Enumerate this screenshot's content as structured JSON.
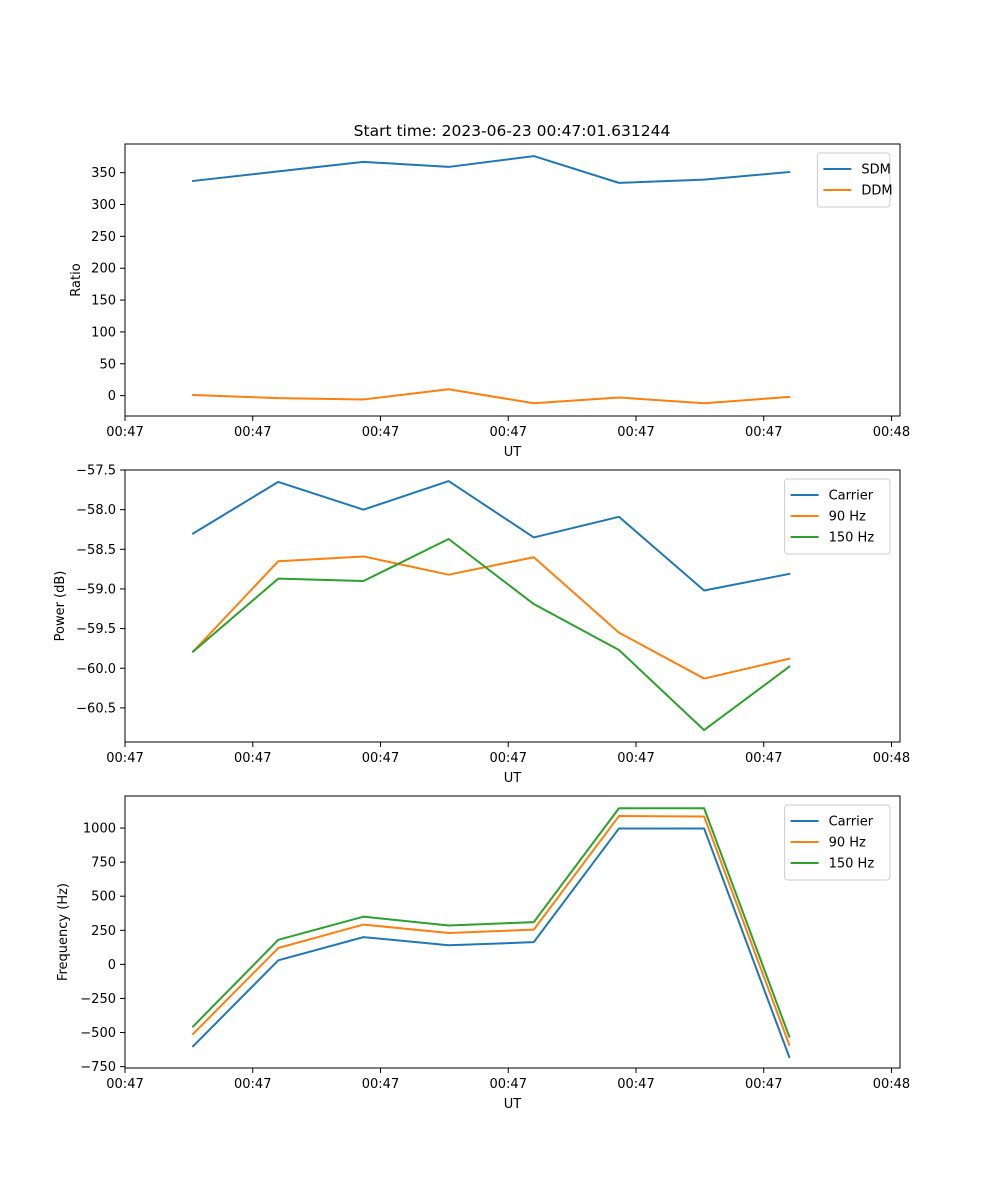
{
  "title": "Start time: 2023-06-23 00:47:01.631244",
  "colors": {
    "blue": "#1f77b4",
    "orange": "#ff7f0e",
    "green": "#2ca02c"
  },
  "chart_data": [
    {
      "type": "line",
      "xlabel": "UT",
      "ylabel": "Ratio",
      "x": [
        1,
        2,
        3,
        4,
        5,
        6,
        7,
        8
      ],
      "xlim": [
        0.2,
        9.3
      ],
      "ylim": [
        -32,
        395
      ],
      "xticks": [
        0.2,
        1.7,
        3.2,
        4.7,
        6.2,
        7.7,
        9.2
      ],
      "xtick_labels": [
        "00:47",
        "00:47",
        "00:47",
        "00:47",
        "00:47",
        "00:47",
        "00:48"
      ],
      "yticks": [
        0,
        50,
        100,
        150,
        200,
        250,
        300,
        350
      ],
      "ytick_labels": [
        "0",
        "50",
        "100",
        "150",
        "200",
        "250",
        "300",
        "350"
      ],
      "legend": "top-right",
      "series": [
        {
          "name": "SDM",
          "color": "#1f77b4",
          "values": [
            337,
            352,
            367,
            359,
            376,
            334,
            339,
            351
          ]
        },
        {
          "name": "DDM",
          "color": "#ff7f0e",
          "values": [
            1,
            -4,
            -6,
            10,
            -12,
            -3,
            -12,
            -2
          ]
        }
      ]
    },
    {
      "type": "line",
      "xlabel": "UT",
      "ylabel": "Power (dB)",
      "x": [
        1,
        2,
        3,
        4,
        5,
        6,
        7,
        8
      ],
      "xlim": [
        0.2,
        9.3
      ],
      "ylim": [
        -60.93,
        -57.5
      ],
      "xticks": [
        0.2,
        1.7,
        3.2,
        4.7,
        6.2,
        7.7,
        9.2
      ],
      "xtick_labels": [
        "00:47",
        "00:47",
        "00:47",
        "00:47",
        "00:47",
        "00:47",
        "00:48"
      ],
      "yticks": [
        -57.5,
        -58.0,
        -58.5,
        -59.0,
        -59.5,
        -60.0,
        -60.5
      ],
      "ytick_labels": [
        "−57.5",
        "−58.0",
        "−58.5",
        "−59.0",
        "−59.5",
        "−60.0",
        "−60.5"
      ],
      "legend": "top-right",
      "series": [
        {
          "name": "Carrier",
          "color": "#1f77b4",
          "values": [
            -58.3,
            -57.65,
            -58.0,
            -57.64,
            -58.35,
            -58.09,
            -59.02,
            -58.81
          ]
        },
        {
          "name": "90 Hz",
          "color": "#ff7f0e",
          "values": [
            -59.79,
            -58.65,
            -58.59,
            -58.82,
            -58.6,
            -59.55,
            -60.13,
            -59.88
          ]
        },
        {
          "name": "150 Hz",
          "color": "#2ca02c",
          "values": [
            -59.79,
            -58.87,
            -58.9,
            -58.37,
            -59.19,
            -59.77,
            -60.78,
            -59.98
          ]
        }
      ]
    },
    {
      "type": "line",
      "xlabel": "UT",
      "ylabel": "Frequency (Hz)",
      "x": [
        1,
        2,
        3,
        4,
        5,
        6,
        7,
        8
      ],
      "xlim": [
        0.2,
        9.3
      ],
      "ylim": [
        -760,
        1235
      ],
      "xticks": [
        0.2,
        1.7,
        3.2,
        4.7,
        6.2,
        7.7,
        9.2
      ],
      "xtick_labels": [
        "00:47",
        "00:47",
        "00:47",
        "00:47",
        "00:47",
        "00:47",
        "00:48"
      ],
      "yticks": [
        -750,
        -500,
        -250,
        0,
        250,
        500,
        750,
        1000
      ],
      "ytick_labels": [
        "−750",
        "−500",
        "−250",
        "0",
        "250",
        "500",
        "750",
        "1000"
      ],
      "legend": "top-right",
      "series": [
        {
          "name": "Carrier",
          "color": "#1f77b4",
          "values": [
            -600,
            30,
            200,
            140,
            163,
            997,
            997,
            -680
          ]
        },
        {
          "name": "90 Hz",
          "color": "#ff7f0e",
          "values": [
            -510,
            120,
            292,
            230,
            255,
            1088,
            1085,
            -590
          ]
        },
        {
          "name": "150 Hz",
          "color": "#2ca02c",
          "values": [
            -455,
            180,
            350,
            285,
            310,
            1145,
            1145,
            -530
          ]
        }
      ]
    }
  ]
}
